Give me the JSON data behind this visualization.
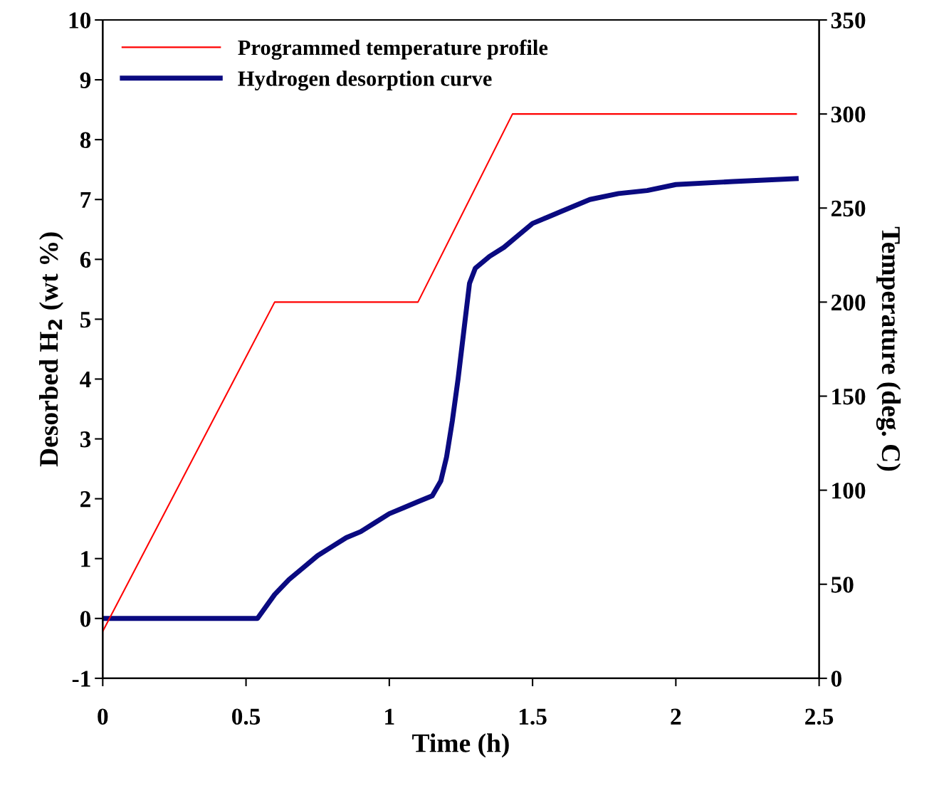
{
  "chart_data": {
    "type": "line",
    "xlabel": "Time (h)",
    "ylabel": "Desorbed H$_{2}$ (wt %)",
    "y2label": "Temperature (deg. C)",
    "xlim": [
      0,
      2.5
    ],
    "xticks": [
      0,
      0.5,
      1,
      1.5,
      2,
      2.5
    ],
    "ylim": [
      -1,
      10
    ],
    "yticks": [
      -1,
      0,
      1,
      2,
      3,
      4,
      5,
      6,
      7,
      8,
      9,
      10
    ],
    "y2lim": [
      0,
      350
    ],
    "y2ticks": [
      0,
      50,
      100,
      150,
      200,
      250,
      300,
      350
    ],
    "grid": false,
    "legend": "top left",
    "marker": "none",
    "line_style": "solid",
    "series": [
      {
        "name": "Programmed temperature profile",
        "color": "#ff0000",
        "axis": "y2",
        "x": [
          0,
          0.6,
          1.1,
          1.43,
          2.42
        ],
        "values": [
          25,
          200,
          200,
          300,
          300
        ]
      },
      {
        "name": "Hydrogen desorption curve",
        "color": "#0a0a80",
        "axis": "y",
        "x": [
          0,
          0.54,
          0.6,
          0.65,
          0.7,
          0.75,
          0.8,
          0.85,
          0.9,
          0.95,
          1.0,
          1.05,
          1.1,
          1.15,
          1.18,
          1.2,
          1.22,
          1.24,
          1.26,
          1.28,
          1.3,
          1.35,
          1.4,
          1.45,
          1.5,
          1.55,
          1.6,
          1.7,
          1.8,
          1.9,
          2.0,
          2.2,
          2.42
        ],
        "values": [
          0,
          0,
          0.4,
          0.65,
          0.85,
          1.05,
          1.2,
          1.35,
          1.45,
          1.6,
          1.75,
          1.85,
          1.95,
          2.05,
          2.3,
          2.7,
          3.3,
          4.0,
          4.8,
          5.6,
          5.85,
          6.05,
          6.2,
          6.4,
          6.6,
          6.7,
          6.8,
          7.0,
          7.1,
          7.15,
          7.25,
          7.3,
          7.35
        ]
      }
    ]
  }
}
